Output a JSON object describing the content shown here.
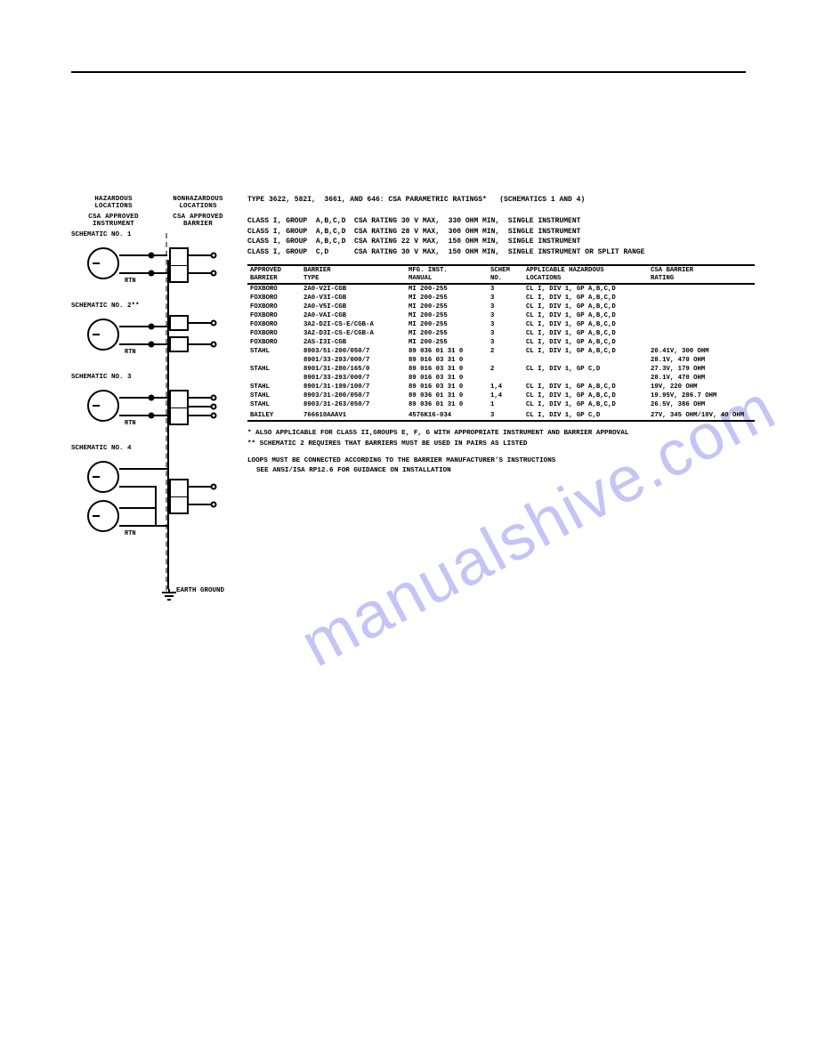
{
  "header": {
    "hazardous": "HAZARDOUS\nLOCATIONS",
    "nonhazardous": "NONHAZARDOUS\nLOCATIONS",
    "csa_inst": "CSA APPROVED\nINSTRUMENT",
    "csa_barrier": "CSA APPROVED\nBARRIER"
  },
  "schematics": {
    "s1": "SCHEMATIC NO. 1",
    "s2": "SCHEMATIC NO. 2**",
    "s3": "SCHEMATIC NO. 3",
    "s4": "SCHEMATIC NO. 4",
    "rtn": "RTN",
    "earth": "EARTH GROUND"
  },
  "title": "TYPE 3622, 582I,  3661, AND 646: CSA PARAMETRIC RATINGS*   (SCHEMATICS 1 AND 4)",
  "ratings": {
    "r1": "CLASS I, GROUP  A,B,C,D  CSA RATING 30 V MAX,  330 OHM MIN,  SINGLE INSTRUMENT",
    "r2": "CLASS I, GROUP  A,B,C,D  CSA RATING 28 V MAX,  300 OHM MIN,  SINGLE INSTRUMENT",
    "r3": "CLASS I, GROUP  A,B,C,D  CSA RATING 22 V MAX,  150 OHM MIN,  SINGLE INSTRUMENT",
    "r4": "CLASS I, GROUP  C,D      CSA RATING 30 V MAX,  150 OHM MIN,  SINGLE INSTRUMENT OR SPLIT RANGE"
  },
  "thead": {
    "c1a": "APPROVED",
    "c1b": "BARRIER",
    "c2a": "BARRIER",
    "c2b": "TYPE",
    "c3a": "MFG. INST.",
    "c3b": "MANUAL",
    "c4a": "SCHEM",
    "c4b": "NO.",
    "c5a": "APPLICABLE HAZARDOUS",
    "c5b": "LOCATIONS",
    "c6a": "CSA BARRIER",
    "c6b": "RATING"
  },
  "rows": [
    {
      "b": "FOXBORO",
      "t": "2A0-V2I-CGB",
      "m": "MI 200-255",
      "s": "3",
      "l": "CL I, DIV 1, GP A,B,C,D",
      "r": ""
    },
    {
      "b": "FOXBORO",
      "t": "2A0-V3I-CGB",
      "m": "MI 200-255",
      "s": "3",
      "l": "CL I, DIV 1, GP A,B,C,D",
      "r": ""
    },
    {
      "b": "FOXBORO",
      "t": "2A0-V5I-CGB",
      "m": "MI 200-255",
      "s": "3",
      "l": "CL I, DIV 1, GP A,B,C,D",
      "r": ""
    },
    {
      "b": "FOXBORO",
      "t": "2A0-VAI-CGB",
      "m": "MI 200-255",
      "s": "3",
      "l": "CL I, DIV 1, GP A,B,C,D",
      "r": ""
    },
    {
      "b": "FOXBORO",
      "t": "3A2-D2I-CS-E/CGB-A",
      "m": "MI 200-255",
      "s": "3",
      "l": "CL I, DIV 1, GP A,B,C,D",
      "r": ""
    },
    {
      "b": "FOXBORO",
      "t": "3A2-D3I-CS-E/CGB-A",
      "m": "MI 200-255",
      "s": "3",
      "l": "CL I, DIV 1, GP A,B,C,D",
      "r": ""
    },
    {
      "b": "FOXBORO",
      "t": "2AS-I3I-CGB",
      "m": "MI 200-255",
      "s": "3",
      "l": "CL I, DIV 1, GP A,B,C,D",
      "r": ""
    },
    {
      "b": "STAHL",
      "t": "8903/51-200/050/7",
      "m": "89 036 01 31 0",
      "s": "2",
      "l": "CL I, DIV 1, GP A,B,C,D",
      "r": "20.41V, 300 OHM"
    },
    {
      "b": "",
      "t": "8901/33-293/000/7",
      "m": "89 016 03 31 0",
      "s": "",
      "l": "",
      "r": "28.1V, 470 OHM"
    },
    {
      "b": "STAHL",
      "t": "8901/31-280/165/0",
      "m": "89 016 03 31 0",
      "s": "2",
      "l": "CL I, DIV 1, GP C,D",
      "r": "27.3V, 179 OHM"
    },
    {
      "b": "",
      "t": "8901/33-293/000/7",
      "m": "89 016 03 31 0",
      "s": "",
      "l": "",
      "r": "28.1V, 470 OHM"
    },
    {
      "b": "STAHL",
      "t": "8901/31-199/100/7",
      "m": "89 016 03 31 0",
      "s": "1,4",
      "l": "CL I, DIV 1, GP A,B,C,D",
      "r": "19V, 220 OHM"
    },
    {
      "b": "STAHL",
      "t": "8903/31-200/050/7",
      "m": "89 036 01 31 0",
      "s": "1,4",
      "l": "CL I, DIV 1, GP A,B,C,D",
      "r": "19.95V, 286.7 OHM"
    },
    {
      "b": "STAHL",
      "t": "8903/31-263/050/7",
      "m": "89 036 01 31 0",
      "s": "1",
      "l": "CL I, DIV 1, GP A,B,C,D",
      "r": "26.5V, 386 OHM"
    },
    {
      "b": "",
      "t": "",
      "m": "",
      "s": "",
      "l": "",
      "r": ""
    },
    {
      "b": "BAILEY",
      "t": "766610AAAV1",
      "m": "4576K16-034",
      "s": "3",
      "l": "CL I, DIV 1, GP C,D",
      "r": "27V, 345 OHM/10V, 40 OHM"
    }
  ],
  "footnotes": {
    "f1": "*  ALSO APPLICABLE FOR CLASS II,GROUPS E, F, G WITH APPROPRIATE INSTRUMENT AND BARRIER APPROVAL",
    "f2": "** SCHEMATIC 2 REQUIRES THAT BARRIERS MUST BE USED IN PAIRS AS LISTED",
    "f3": "LOOPS MUST BE CONNECTED ACCORDING TO THE BARRIER MANUFACTURER'S INSTRUCTIONS",
    "f4": "SEE ANSI/ISA RP12.6 FOR GUIDANCE ON INSTALLATION"
  },
  "watermark": "manualshive.com"
}
